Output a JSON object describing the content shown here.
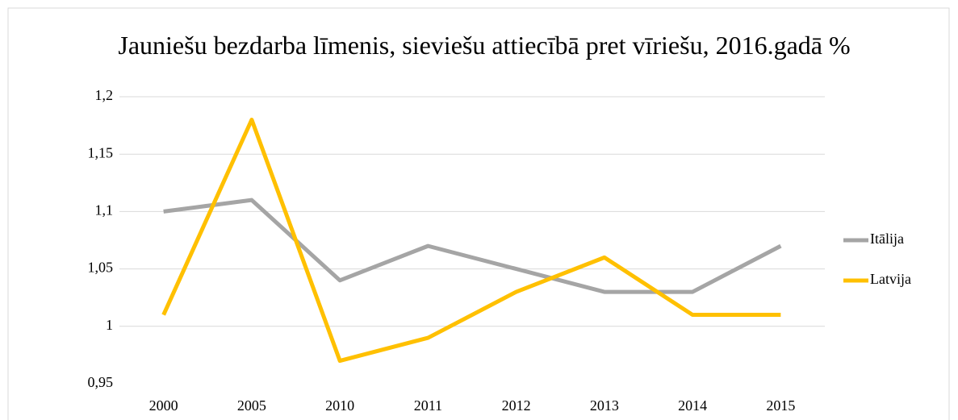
{
  "chart_data": {
    "type": "line",
    "title": "Jauniešu bezdarba līmenis, sieviešu attiecībā pret vīriešu, 2016.gadā  %",
    "categories": [
      "2000",
      "2005",
      "2010",
      "2011",
      "2012",
      "2013",
      "2014",
      "2015"
    ],
    "series": [
      {
        "name": "Itālija",
        "color": "#a5a5a5",
        "values": [
          1.1,
          1.11,
          1.04,
          1.07,
          1.05,
          1.03,
          1.03,
          1.07
        ]
      },
      {
        "name": "Latvija",
        "color": "#ffc000",
        "values": [
          1.01,
          1.18,
          0.97,
          0.99,
          1.03,
          1.06,
          1.01,
          1.01
        ]
      }
    ],
    "ylim": [
      0.95,
      1.2
    ],
    "yticks": [
      {
        "value": 0.95,
        "label": "0,95"
      },
      1,
      {
        "value": 1.05,
        "label": "1,05"
      },
      {
        "value": 1.1,
        "label": "1,1"
      },
      {
        "value": 1.15,
        "label": "1,15"
      },
      {
        "value": 1.2,
        "label": "1,2"
      }
    ],
    "grid": true,
    "legend": "right"
  }
}
